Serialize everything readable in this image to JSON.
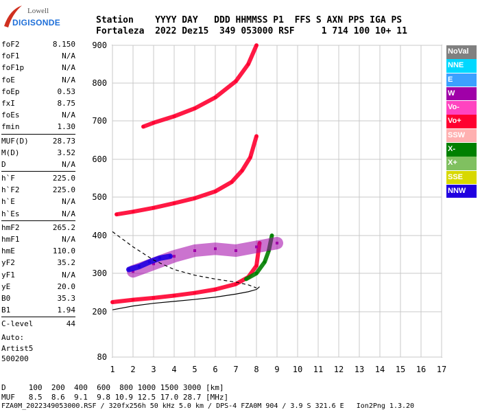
{
  "logo": {
    "brand": "Lowell",
    "name": "DIGISONDE"
  },
  "header": {
    "labels": "Station    YYYY DAY   DDD HHMMSS P1  FFS S AXN PPS IGA PS",
    "values": "Fortaleza  2022 Dez15  349 053000 RSF     1 714 100 10+ 11"
  },
  "params": [
    [
      {
        "n": "foF2",
        "v": "8.150"
      },
      {
        "n": "foF1",
        "v": "N/A"
      },
      {
        "n": "foF1p",
        "v": "N/A"
      },
      {
        "n": "foE",
        "v": "N/A"
      },
      {
        "n": "foEp",
        "v": "0.53"
      },
      {
        "n": "fxI",
        "v": "8.75"
      },
      {
        "n": "foEs",
        "v": "N/A"
      },
      {
        "n": "fmin",
        "v": "1.30"
      }
    ],
    [
      {
        "n": "MUF(D)",
        "v": "28.73"
      },
      {
        "n": "M(D)",
        "v": "3.52"
      },
      {
        "n": "D",
        "v": "N/A"
      }
    ],
    [
      {
        "n": "h`F",
        "v": "225.0"
      },
      {
        "n": "h`F2",
        "v": "225.0"
      },
      {
        "n": "h`E",
        "v": "N/A"
      },
      {
        "n": "h`Es",
        "v": "N/A"
      }
    ],
    [
      {
        "n": "hmF2",
        "v": "265.2"
      },
      {
        "n": "hmF1",
        "v": "N/A"
      },
      {
        "n": "hmE",
        "v": "110.0"
      },
      {
        "n": "yF2",
        "v": "35.2"
      },
      {
        "n": "yF1",
        "v": "N/A"
      },
      {
        "n": "yE",
        "v": "20.0"
      },
      {
        "n": "B0",
        "v": "35.3"
      },
      {
        "n": "B1",
        "v": "1.94"
      }
    ],
    [
      {
        "n": "C-level",
        "v": "44"
      }
    ]
  ],
  "notes": {
    "auto": "Auto:",
    "artist": "Artist5",
    "version": "500200"
  },
  "legend": [
    {
      "label": "NoVal",
      "color": "#808080"
    },
    {
      "label": "NNE",
      "color": "#00d8ff"
    },
    {
      "label": "E",
      "color": "#3ca0ff"
    },
    {
      "label": "W",
      "color": "#a000a8"
    },
    {
      "label": "Vo-",
      "color": "#ff44c0"
    },
    {
      "label": "Vo+",
      "color": "#ff0030"
    },
    {
      "label": "SSW",
      "color": "#ffb0b0"
    },
    {
      "label": "X-",
      "color": "#008000"
    },
    {
      "label": "X+",
      "color": "#80c060"
    },
    {
      "label": "SSE",
      "color": "#d8d800"
    },
    {
      "label": "NNW",
      "color": "#2000e0"
    }
  ],
  "bottom": {
    "line1": "D     100  200  400  600  800 1000 1500 3000 [km]",
    "line2": "MUF   8.5  8.6  9.1  9.8 10.9 12.5 17.0 28.7 [MHz]",
    "line3": "FZA0M_2022349053000.RSF / 320fx256h 50 kHz 5.0 km / DPS-4 FZA0M 904 / 3.9 S 321.6 E   Ion2Png 1.3.20"
  },
  "chart_data": {
    "type": "scatter",
    "title": "",
    "xlabel": "",
    "ylabel": "",
    "xlim": [
      1,
      17
    ],
    "ylim": [
      80,
      900
    ],
    "xticks": [
      1,
      2,
      3,
      4,
      5,
      6,
      7,
      8,
      9,
      10,
      11,
      12,
      13,
      14,
      15,
      16,
      17
    ],
    "yticks": [
      80,
      200,
      300,
      400,
      500,
      600,
      700,
      800,
      900
    ],
    "grid": true,
    "note": "Ionogram: virtual height (km) vs frequency (MHz); multi-hop echo traces",
    "traces": [
      {
        "name": "1st hop F2 O-trace",
        "color": "#ff0030",
        "points": [
          [
            1.0,
            225
          ],
          [
            2.0,
            231
          ],
          [
            3.0,
            236
          ],
          [
            4.0,
            242
          ],
          [
            5.0,
            249
          ],
          [
            6.0,
            258
          ],
          [
            7.0,
            272
          ],
          [
            7.6,
            290
          ],
          [
            8.0,
            320
          ],
          [
            8.15,
            380
          ]
        ]
      },
      {
        "name": "1st hop F2 X-trace",
        "color": "#008000",
        "points": [
          [
            7.5,
            285
          ],
          [
            8.0,
            300
          ],
          [
            8.4,
            330
          ],
          [
            8.6,
            360
          ],
          [
            8.75,
            400
          ]
        ]
      },
      {
        "name": "2nd hop F2",
        "color": "#ff0030",
        "points": [
          [
            1.2,
            455
          ],
          [
            2.0,
            462
          ],
          [
            3.0,
            472
          ],
          [
            4.0,
            484
          ],
          [
            5.0,
            497
          ],
          [
            6.0,
            515
          ],
          [
            6.8,
            540
          ],
          [
            7.3,
            570
          ],
          [
            7.7,
            605
          ],
          [
            8.0,
            660
          ]
        ]
      },
      {
        "name": "3rd hop F2",
        "color": "#ff0030",
        "points": [
          [
            2.5,
            685
          ],
          [
            3.0,
            695
          ],
          [
            4.0,
            712
          ],
          [
            5.0,
            733
          ],
          [
            6.0,
            762
          ],
          [
            7.0,
            805
          ],
          [
            7.6,
            850
          ],
          [
            8.0,
            900
          ]
        ]
      },
      {
        "name": "Spread echoes (W)",
        "color": "#a000a8",
        "points": [
          [
            2.0,
            305
          ],
          [
            3.0,
            325
          ],
          [
            4.0,
            345
          ],
          [
            5.0,
            360
          ],
          [
            6.0,
            365
          ],
          [
            7.0,
            360
          ],
          [
            8.0,
            370
          ],
          [
            9.0,
            380
          ]
        ]
      },
      {
        "name": "Oblique echoes (NNW)",
        "color": "#2000e0",
        "points": [
          [
            1.8,
            310
          ],
          [
            2.3,
            318
          ],
          [
            2.8,
            330
          ],
          [
            3.3,
            340
          ],
          [
            3.8,
            345
          ]
        ]
      }
    ],
    "profile": {
      "dashed": [
        [
          1.0,
          410
        ],
        [
          2.0,
          370
        ],
        [
          3.0,
          335
        ],
        [
          4.0,
          310
        ],
        [
          5.0,
          295
        ],
        [
          6.0,
          285
        ],
        [
          7.0,
          277
        ],
        [
          7.6,
          270
        ],
        [
          8.0,
          262
        ]
      ],
      "solid": [
        [
          1.0,
          205
        ],
        [
          2.0,
          215
        ],
        [
          3.0,
          222
        ],
        [
          4.0,
          227
        ],
        [
          5.0,
          232
        ],
        [
          6.0,
          238
        ],
        [
          7.0,
          246
        ],
        [
          7.6,
          252
        ],
        [
          8.0,
          258
        ],
        [
          8.15,
          265
        ]
      ]
    }
  }
}
